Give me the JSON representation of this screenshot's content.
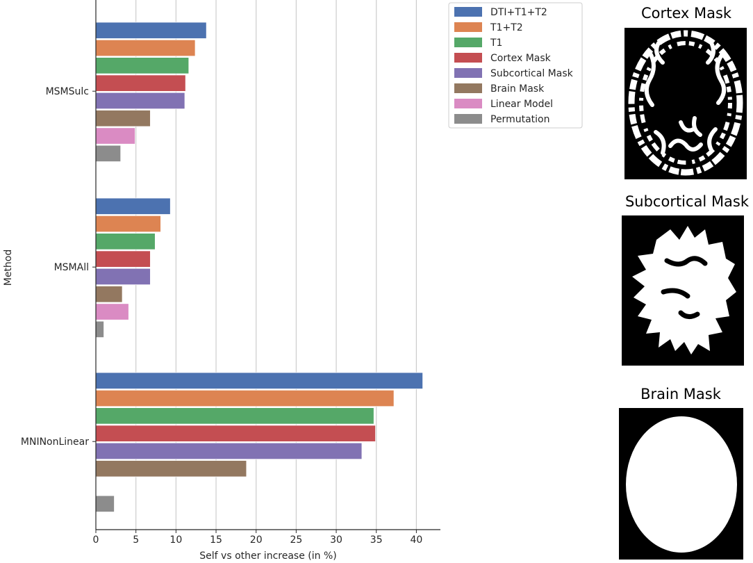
{
  "chart_data": {
    "type": "bar",
    "orientation": "horizontal",
    "title": "",
    "xlabel": "Self vs other increase (in %)",
    "ylabel": "Method",
    "xlim": [
      0,
      43
    ],
    "xticks": [
      0,
      5,
      10,
      15,
      20,
      25,
      30,
      35,
      40
    ],
    "grid": "vertical",
    "legend_position": "top-right",
    "categories": [
      "MSMSulc",
      "MSMAll",
      "MNINonLinear"
    ],
    "series": [
      {
        "name": "DTI+T1+T2",
        "color": "#4c72b0",
        "values": [
          13.8,
          9.3,
          40.8
        ]
      },
      {
        "name": "T1+T2",
        "color": "#dd8452",
        "values": [
          12.4,
          8.1,
          37.2
        ]
      },
      {
        "name": "T1",
        "color": "#55a868",
        "values": [
          11.6,
          7.4,
          34.7
        ]
      },
      {
        "name": "Cortex Mask",
        "color": "#c44e52",
        "values": [
          11.2,
          6.8,
          34.9
        ]
      },
      {
        "name": "Subcortical Mask",
        "color": "#8172b3",
        "values": [
          11.1,
          6.8,
          33.2
        ]
      },
      {
        "name": "Brain Mask",
        "color": "#937860",
        "values": [
          6.8,
          3.3,
          18.8
        ]
      },
      {
        "name": "Linear Model",
        "color": "#da8bc3",
        "values": [
          4.9,
          4.1,
          null
        ]
      },
      {
        "name": "Permutation",
        "color": "#8c8c8c",
        "values": [
          3.1,
          1.0,
          2.3
        ]
      }
    ]
  },
  "mask_panels": [
    {
      "title": "Cortex Mask",
      "icon": "cortex-mask-image"
    },
    {
      "title": "Subcortical Mask",
      "icon": "subcortical-mask-image"
    },
    {
      "title": "Brain Mask",
      "icon": "brain-mask-image"
    }
  ]
}
